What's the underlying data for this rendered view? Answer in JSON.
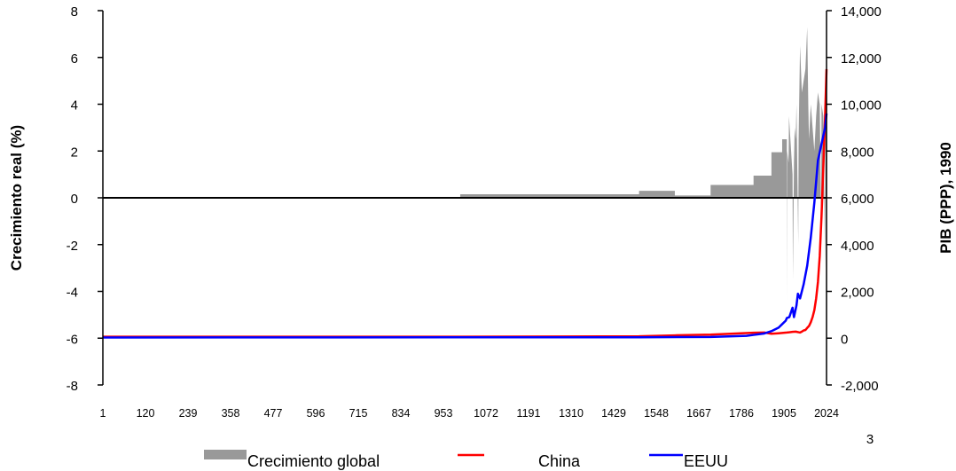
{
  "chart_data": {
    "type": "line",
    "xlabel": "",
    "ylabel": "Crecimiento real (%)",
    "y2label": "PIB (PPP), 1990",
    "ylim": [
      -8,
      8
    ],
    "y2lim": [
      -2000,
      14000
    ],
    "y_ticks": [
      "8",
      "6",
      "4",
      "2",
      "0",
      "-2",
      "-4",
      "-6",
      "-8"
    ],
    "y2_ticks": [
      "14,000",
      "12,000",
      "10,000",
      "8,000",
      "6,000",
      "4,000",
      "2,000",
      "0",
      "-2,000"
    ],
    "x_ticks": [
      "1",
      "120",
      "239",
      "358",
      "477",
      "596",
      "715",
      "834",
      "953",
      "1072",
      "1191",
      "1310",
      "1429",
      "1548",
      "1667",
      "1786",
      "1905",
      "2024"
    ],
    "x_range": [
      1,
      2024
    ],
    "legend_position": "bottom",
    "series": [
      {
        "name": "Crecimiento global",
        "axis": "left",
        "kind": "area",
        "color": "#999999",
        "x": [
          1,
          1000,
          1000,
          1500,
          1500,
          1600,
          1600,
          1700,
          1700,
          1820,
          1820,
          1870,
          1870,
          1900,
          1900,
          1913,
          1913,
          1914,
          1918,
          1919,
          1929,
          1930,
          1933,
          1935,
          1938,
          1940,
          1945,
          1946,
          1950,
          1955,
          1960,
          1965,
          1970,
          1973,
          1975,
          1980,
          1985,
          1990,
          1995,
          2000,
          2005,
          2009,
          2010,
          2015,
          2020,
          2021,
          2024
        ],
        "values": [
          0,
          0,
          0.15,
          0.15,
          0.3,
          0.3,
          0.1,
          0.1,
          0.55,
          0.55,
          0.95,
          0.95,
          1.95,
          1.95,
          2.5,
          2.5,
          -4.5,
          2.0,
          1.5,
          3.5,
          1.0,
          -3.5,
          1.5,
          3.0,
          2.5,
          4.0,
          -2.0,
          2.5,
          6.5,
          4.5,
          5.0,
          5.5,
          7.3,
          4.0,
          2.5,
          4.0,
          3.0,
          2.0,
          3.5,
          4.5,
          4.0,
          -1.0,
          4.0,
          3.5,
          -3.0,
          5.5,
          3.0
        ]
      },
      {
        "name": "China",
        "axis": "right",
        "color": "#ff0000",
        "x": [
          1,
          1000,
          1500,
          1600,
          1700,
          1820,
          1850,
          1870,
          1890,
          1913,
          1929,
          1938,
          1950,
          1955,
          1960,
          1965,
          1970,
          1975,
          1980,
          1985,
          1990,
          1995,
          2000,
          2005,
          2010,
          2015,
          2020,
          2024
        ],
        "values": [
          60,
          60,
          80,
          120,
          150,
          230,
          240,
          190,
          210,
          240,
          270,
          280,
          240,
          280,
          330,
          350,
          440,
          520,
          680,
          900,
          1200,
          1700,
          2400,
          3500,
          5200,
          7300,
          9500,
          11500
        ]
      },
      {
        "name": "EEUU",
        "axis": "right",
        "color": "#0000ff",
        "x": [
          1,
          1500,
          1700,
          1800,
          1820,
          1850,
          1870,
          1890,
          1900,
          1910,
          1913,
          1920,
          1929,
          1933,
          1940,
          1944,
          1950,
          1960,
          1970,
          1980,
          1990,
          2000,
          2010,
          2020,
          2024
        ],
        "values": [
          30,
          40,
          50,
          100,
          140,
          200,
          300,
          450,
          600,
          750,
          860,
          900,
          1300,
          900,
          1400,
          1900,
          1700,
          2300,
          3100,
          4300,
          5800,
          7600,
          8300,
          9000,
          9600
        ]
      }
    ]
  },
  "page_number": "3"
}
